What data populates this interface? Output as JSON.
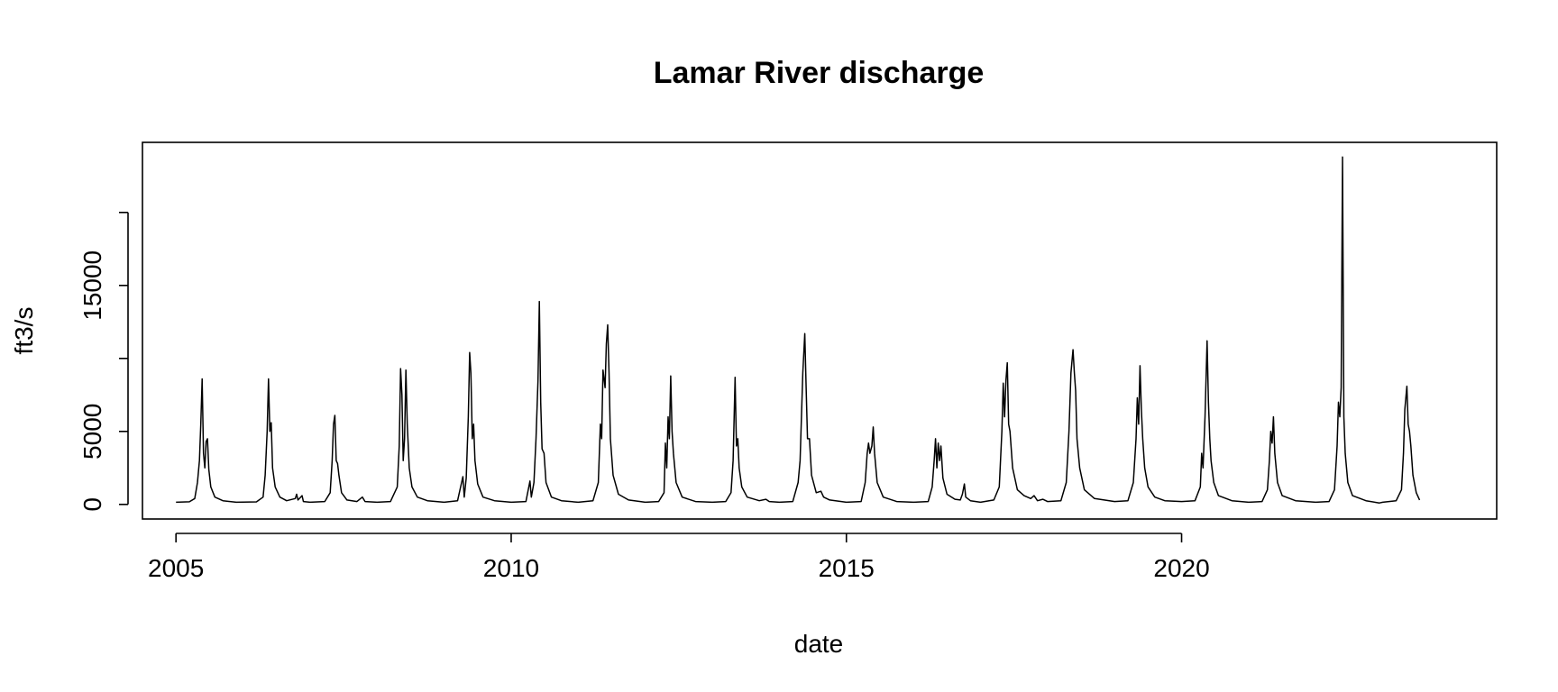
{
  "chart_data": {
    "type": "line",
    "title": "Lamar River discharge",
    "xlabel": "date",
    "ylabel": "ft3/s",
    "xlim": [
      2004.5,
      2024.7
    ],
    "ylim": [
      -1000,
      24800
    ],
    "grid": false,
    "legend": "none",
    "x_ticks": [
      {
        "value": 2005,
        "label": "2005"
      },
      {
        "value": 2010,
        "label": "2010"
      },
      {
        "value": 2015,
        "label": "2015"
      },
      {
        "value": 2020,
        "label": "2020"
      }
    ],
    "y_ticks": [
      {
        "value": 0,
        "label": "0"
      },
      {
        "value": 5000,
        "label": "5000"
      },
      {
        "value": 10000,
        "label": ""
      },
      {
        "value": 15000,
        "label": "15000"
      },
      {
        "value": 20000,
        "label": ""
      }
    ],
    "series": [
      {
        "color": "#000000",
        "points": [
          [
            2005.0,
            150
          ],
          [
            2005.2,
            180
          ],
          [
            2005.28,
            400
          ],
          [
            2005.32,
            1500
          ],
          [
            2005.35,
            3000
          ],
          [
            2005.37,
            5500
          ],
          [
            2005.39,
            8600
          ],
          [
            2005.41,
            3500
          ],
          [
            2005.43,
            2500
          ],
          [
            2005.45,
            4300
          ],
          [
            2005.47,
            4500
          ],
          [
            2005.49,
            2400
          ],
          [
            2005.52,
            1200
          ],
          [
            2005.58,
            500
          ],
          [
            2005.7,
            250
          ],
          [
            2005.9,
            150
          ],
          [
            2006.2,
            170
          ],
          [
            2006.3,
            500
          ],
          [
            2006.33,
            2000
          ],
          [
            2006.36,
            5000
          ],
          [
            2006.38,
            8600
          ],
          [
            2006.4,
            5000
          ],
          [
            2006.42,
            5600
          ],
          [
            2006.44,
            2500
          ],
          [
            2006.48,
            1200
          ],
          [
            2006.55,
            500
          ],
          [
            2006.65,
            250
          ],
          [
            2006.78,
            400
          ],
          [
            2006.8,
            700
          ],
          [
            2006.82,
            300
          ],
          [
            2006.88,
            600
          ],
          [
            2006.9,
            200
          ],
          [
            2007.0,
            150
          ],
          [
            2007.22,
            200
          ],
          [
            2007.3,
            800
          ],
          [
            2007.33,
            3000
          ],
          [
            2007.35,
            5500
          ],
          [
            2007.37,
            6100
          ],
          [
            2007.39,
            3000
          ],
          [
            2007.41,
            2800
          ],
          [
            2007.43,
            2000
          ],
          [
            2007.47,
            800
          ],
          [
            2007.55,
            300
          ],
          [
            2007.7,
            200
          ],
          [
            2007.78,
            500
          ],
          [
            2007.82,
            200
          ],
          [
            2008.0,
            150
          ],
          [
            2008.2,
            200
          ],
          [
            2008.3,
            1200
          ],
          [
            2008.33,
            4000
          ],
          [
            2008.35,
            9300
          ],
          [
            2008.37,
            7500
          ],
          [
            2008.39,
            3000
          ],
          [
            2008.41,
            4500
          ],
          [
            2008.43,
            9200
          ],
          [
            2008.45,
            5500
          ],
          [
            2008.48,
            2500
          ],
          [
            2008.52,
            1200
          ],
          [
            2008.6,
            500
          ],
          [
            2008.75,
            250
          ],
          [
            2009.0,
            150
          ],
          [
            2009.2,
            250
          ],
          [
            2009.28,
            1900
          ],
          [
            2009.3,
            500
          ],
          [
            2009.33,
            1800
          ],
          [
            2009.36,
            6000
          ],
          [
            2009.38,
            10400
          ],
          [
            2009.4,
            9000
          ],
          [
            2009.42,
            4500
          ],
          [
            2009.44,
            5500
          ],
          [
            2009.46,
            3000
          ],
          [
            2009.5,
            1400
          ],
          [
            2009.58,
            500
          ],
          [
            2009.75,
            250
          ],
          [
            2010.0,
            150
          ],
          [
            2010.22,
            200
          ],
          [
            2010.28,
            1600
          ],
          [
            2010.3,
            500
          ],
          [
            2010.34,
            1500
          ],
          [
            2010.37,
            4500
          ],
          [
            2010.4,
            8500
          ],
          [
            2010.42,
            13900
          ],
          [
            2010.44,
            7000
          ],
          [
            2010.46,
            3800
          ],
          [
            2010.49,
            3500
          ],
          [
            2010.52,
            1500
          ],
          [
            2010.6,
            500
          ],
          [
            2010.75,
            250
          ],
          [
            2011.0,
            150
          ],
          [
            2011.22,
            250
          ],
          [
            2011.3,
            1500
          ],
          [
            2011.33,
            5500
          ],
          [
            2011.35,
            4500
          ],
          [
            2011.37,
            9200
          ],
          [
            2011.4,
            8000
          ],
          [
            2011.42,
            11000
          ],
          [
            2011.44,
            12300
          ],
          [
            2011.46,
            9000
          ],
          [
            2011.48,
            4500
          ],
          [
            2011.52,
            2000
          ],
          [
            2011.6,
            700
          ],
          [
            2011.75,
            300
          ],
          [
            2012.0,
            150
          ],
          [
            2012.2,
            200
          ],
          [
            2012.28,
            800
          ],
          [
            2012.3,
            4200
          ],
          [
            2012.32,
            2500
          ],
          [
            2012.34,
            6000
          ],
          [
            2012.36,
            4500
          ],
          [
            2012.38,
            8800
          ],
          [
            2012.4,
            5000
          ],
          [
            2012.42,
            3500
          ],
          [
            2012.46,
            1500
          ],
          [
            2012.55,
            500
          ],
          [
            2012.75,
            200
          ],
          [
            2013.0,
            150
          ],
          [
            2013.2,
            200
          ],
          [
            2013.28,
            800
          ],
          [
            2013.31,
            3000
          ],
          [
            2013.34,
            8700
          ],
          [
            2013.36,
            4000
          ],
          [
            2013.38,
            4500
          ],
          [
            2013.4,
            2500
          ],
          [
            2013.44,
            1200
          ],
          [
            2013.52,
            500
          ],
          [
            2013.7,
            250
          ],
          [
            2013.8,
            350
          ],
          [
            2013.85,
            200
          ],
          [
            2014.0,
            150
          ],
          [
            2014.2,
            200
          ],
          [
            2014.28,
            1500
          ],
          [
            2014.31,
            3000
          ],
          [
            2014.33,
            6000
          ],
          [
            2014.35,
            9000
          ],
          [
            2014.38,
            11700
          ],
          [
            2014.4,
            8000
          ],
          [
            2014.42,
            4500
          ],
          [
            2014.45,
            4500
          ],
          [
            2014.48,
            2000
          ],
          [
            2014.55,
            800
          ],
          [
            2014.62,
            900
          ],
          [
            2014.66,
            500
          ],
          [
            2014.75,
            300
          ],
          [
            2015.0,
            150
          ],
          [
            2015.22,
            200
          ],
          [
            2015.28,
            1500
          ],
          [
            2015.31,
            3500
          ],
          [
            2015.33,
            4200
          ],
          [
            2015.35,
            3500
          ],
          [
            2015.38,
            4000
          ],
          [
            2015.4,
            5300
          ],
          [
            2015.42,
            3500
          ],
          [
            2015.46,
            1500
          ],
          [
            2015.55,
            500
          ],
          [
            2015.75,
            200
          ],
          [
            2016.0,
            150
          ],
          [
            2016.22,
            200
          ],
          [
            2016.28,
            1200
          ],
          [
            2016.31,
            3000
          ],
          [
            2016.33,
            4500
          ],
          [
            2016.35,
            2500
          ],
          [
            2016.37,
            4200
          ],
          [
            2016.39,
            3000
          ],
          [
            2016.41,
            4000
          ],
          [
            2016.44,
            1800
          ],
          [
            2016.5,
            700
          ],
          [
            2016.62,
            350
          ],
          [
            2016.7,
            300
          ],
          [
            2016.73,
            700
          ],
          [
            2016.76,
            1400
          ],
          [
            2016.78,
            500
          ],
          [
            2016.85,
            250
          ],
          [
            2017.0,
            150
          ],
          [
            2017.2,
            300
          ],
          [
            2017.28,
            1200
          ],
          [
            2017.32,
            5000
          ],
          [
            2017.34,
            8300
          ],
          [
            2017.36,
            6000
          ],
          [
            2017.38,
            8500
          ],
          [
            2017.4,
            9700
          ],
          [
            2017.42,
            5500
          ],
          [
            2017.44,
            5000
          ],
          [
            2017.48,
            2500
          ],
          [
            2017.55,
            1000
          ],
          [
            2017.65,
            600
          ],
          [
            2017.75,
            400
          ],
          [
            2017.8,
            600
          ],
          [
            2017.85,
            250
          ],
          [
            2017.93,
            350
          ],
          [
            2018.0,
            200
          ],
          [
            2018.2,
            250
          ],
          [
            2018.28,
            1500
          ],
          [
            2018.32,
            5000
          ],
          [
            2018.35,
            9000
          ],
          [
            2018.38,
            10600
          ],
          [
            2018.4,
            9000
          ],
          [
            2018.42,
            7800
          ],
          [
            2018.44,
            4500
          ],
          [
            2018.48,
            2500
          ],
          [
            2018.55,
            1000
          ],
          [
            2018.7,
            400
          ],
          [
            2019.0,
            200
          ],
          [
            2019.2,
            250
          ],
          [
            2019.28,
            1500
          ],
          [
            2019.32,
            4500
          ],
          [
            2019.34,
            7300
          ],
          [
            2019.36,
            5500
          ],
          [
            2019.38,
            9500
          ],
          [
            2019.4,
            6500
          ],
          [
            2019.42,
            4500
          ],
          [
            2019.45,
            2500
          ],
          [
            2019.5,
            1200
          ],
          [
            2019.6,
            500
          ],
          [
            2019.75,
            250
          ],
          [
            2020.0,
            200
          ],
          [
            2020.2,
            250
          ],
          [
            2020.28,
            1200
          ],
          [
            2020.3,
            3500
          ],
          [
            2020.32,
            2500
          ],
          [
            2020.35,
            6000
          ],
          [
            2020.38,
            11200
          ],
          [
            2020.4,
            7000
          ],
          [
            2020.42,
            4500
          ],
          [
            2020.44,
            3000
          ],
          [
            2020.48,
            1500
          ],
          [
            2020.55,
            600
          ],
          [
            2020.75,
            250
          ],
          [
            2021.0,
            150
          ],
          [
            2021.2,
            200
          ],
          [
            2021.28,
            1000
          ],
          [
            2021.31,
            3000
          ],
          [
            2021.33,
            5000
          ],
          [
            2021.35,
            4200
          ],
          [
            2021.37,
            6000
          ],
          [
            2021.39,
            3500
          ],
          [
            2021.43,
            1500
          ],
          [
            2021.5,
            600
          ],
          [
            2021.7,
            250
          ],
          [
            2022.0,
            150
          ],
          [
            2022.2,
            200
          ],
          [
            2022.28,
            1000
          ],
          [
            2022.32,
            4000
          ],
          [
            2022.34,
            7000
          ],
          [
            2022.36,
            6000
          ],
          [
            2022.38,
            8000
          ],
          [
            2022.4,
            23800
          ],
          [
            2022.42,
            6000
          ],
          [
            2022.44,
            3500
          ],
          [
            2022.48,
            1500
          ],
          [
            2022.55,
            600
          ],
          [
            2022.75,
            250
          ],
          [
            2022.95,
            100
          ],
          [
            2023.0,
            150
          ],
          [
            2023.2,
            250
          ],
          [
            2023.28,
            1000
          ],
          [
            2023.31,
            3500
          ],
          [
            2023.33,
            6500
          ],
          [
            2023.36,
            8100
          ],
          [
            2023.38,
            5500
          ],
          [
            2023.4,
            5000
          ],
          [
            2023.42,
            4000
          ],
          [
            2023.45,
            2000
          ],
          [
            2023.5,
            800
          ],
          [
            2023.55,
            300
          ]
        ]
      }
    ]
  }
}
